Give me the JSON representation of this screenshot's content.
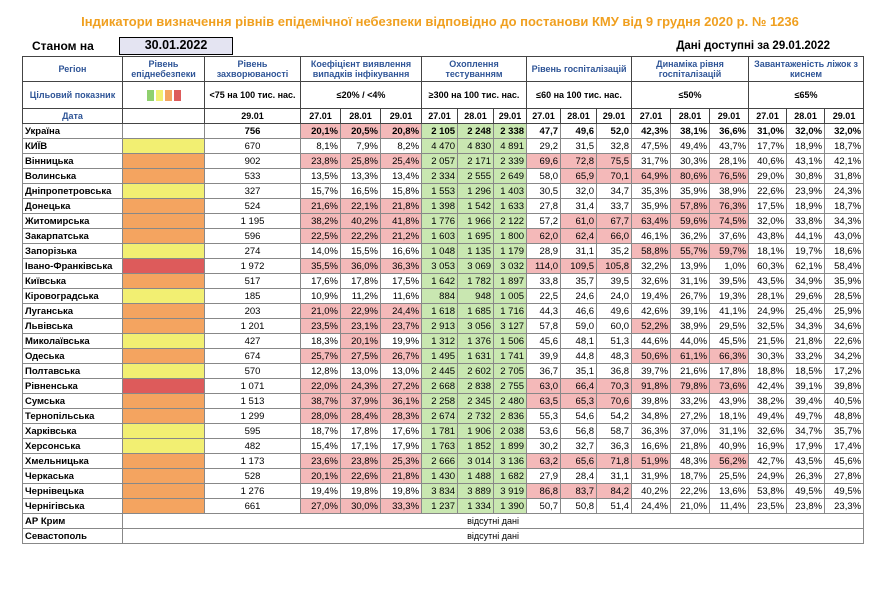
{
  "title": "Індикатори визначення рівнів епідемічної небезпеки відповідно до постанови КМУ від 9 грудня 2020 р. № 1236",
  "status": {
    "label": "Станом на",
    "date": "30.01.2022",
    "available": "Дані доступні за 29.01.2022"
  },
  "headers": {
    "region": "Регіон",
    "target_indicator": "Цільовий показник",
    "date_label": "Дата",
    "level": "Рівень епіднебезпеки",
    "incidence": "Рівень захворюваності",
    "incidence_target": "<75 на 100 тис. нас.",
    "incidence_date": "29.01",
    "coef": "Коефіцієнт виявлення випадків інфікування",
    "coef_target": "≤20% / <4%",
    "coverage": "Охоплення тестуванням",
    "coverage_target": "≥300 на 100 тис. нас.",
    "hosp": "Рівень госпіталізацій",
    "hosp_target": "≤60 на 100 тис. нас.",
    "dyn": "Динаміка рівня госпіталізацій",
    "dyn_target": "≤50%",
    "beds": "Завантаженість ліжок з киснем",
    "beds_target": "≤65%",
    "dates3": [
      "27.01",
      "28.01",
      "29.01"
    ],
    "legend_colors": [
      "#8fd06e",
      "#f2ef72",
      "#f4a460",
      "#dd5b5b"
    ]
  },
  "rows": [
    {
      "name": "Україна",
      "level": "",
      "inc": "756",
      "coef": [
        "20,1%",
        "20,5%",
        "20,8%"
      ],
      "cov": [
        "2 105",
        "2 248",
        "2 338"
      ],
      "hosp": [
        "47,7",
        "49,6",
        "52,0"
      ],
      "dyn": [
        "42,3%",
        "38,1%",
        "36,6%"
      ],
      "beds": [
        "31,0%",
        "32,0%",
        "32,0%"
      ]
    },
    {
      "name": "КИЇВ",
      "level": "yellow",
      "inc": "670",
      "coef": [
        "8,1%",
        "7,9%",
        "8,2%"
      ],
      "cov": [
        "4 470",
        "4 830",
        "4 891"
      ],
      "hosp": [
        "29,2",
        "31,5",
        "32,8"
      ],
      "dyn": [
        "47,5%",
        "49,4%",
        "43,7%"
      ],
      "beds": [
        "17,7%",
        "18,9%",
        "18,7%"
      ]
    },
    {
      "name": "Вінницька",
      "level": "orange",
      "inc": "902",
      "coef": [
        "23,8%",
        "25,8%",
        "25,4%"
      ],
      "cov": [
        "2 057",
        "2 171",
        "2 339"
      ],
      "hosp": [
        "69,6",
        "72,8",
        "75,5"
      ],
      "dyn": [
        "31,7%",
        "30,3%",
        "28,1%"
      ],
      "beds": [
        "40,6%",
        "43,1%",
        "42,1%"
      ]
    },
    {
      "name": "Волинська",
      "level": "orange",
      "inc": "533",
      "coef": [
        "13,5%",
        "13,3%",
        "13,4%"
      ],
      "cov": [
        "2 334",
        "2 555",
        "2 649"
      ],
      "hosp": [
        "58,0",
        "65,9",
        "70,1"
      ],
      "dyn": [
        "64,9%",
        "80,6%",
        "76,5%"
      ],
      "beds": [
        "29,0%",
        "30,8%",
        "31,8%"
      ]
    },
    {
      "name": "Дніпропетровська",
      "level": "yellow",
      "inc": "327",
      "coef": [
        "15,7%",
        "16,5%",
        "15,8%"
      ],
      "cov": [
        "1 553",
        "1 296",
        "1 403"
      ],
      "hosp": [
        "30,5",
        "32,0",
        "34,7"
      ],
      "dyn": [
        "35,3%",
        "35,9%",
        "38,9%"
      ],
      "beds": [
        "22,6%",
        "23,9%",
        "24,3%"
      ]
    },
    {
      "name": "Донецька",
      "level": "orange",
      "inc": "524",
      "coef": [
        "21,6%",
        "22,1%",
        "21,8%"
      ],
      "cov": [
        "1 398",
        "1 542",
        "1 633"
      ],
      "hosp": [
        "27,8",
        "31,4",
        "33,7"
      ],
      "dyn": [
        "35,9%",
        "57,8%",
        "76,3%"
      ],
      "beds": [
        "17,5%",
        "18,9%",
        "18,7%"
      ]
    },
    {
      "name": "Житомирська",
      "level": "orange",
      "inc": "1 195",
      "coef": [
        "38,2%",
        "40,2%",
        "41,8%"
      ],
      "cov": [
        "1 776",
        "1 966",
        "2 122"
      ],
      "hosp": [
        "57,2",
        "61,0",
        "67,7"
      ],
      "dyn": [
        "63,4%",
        "59,6%",
        "74,5%"
      ],
      "beds": [
        "32,0%",
        "33,8%",
        "34,3%"
      ]
    },
    {
      "name": "Закарпатська",
      "level": "orange",
      "inc": "596",
      "coef": [
        "22,5%",
        "22,2%",
        "21,2%"
      ],
      "cov": [
        "1 603",
        "1 695",
        "1 800"
      ],
      "hosp": [
        "62,0",
        "62,4",
        "66,0"
      ],
      "dyn": [
        "46,1%",
        "36,2%",
        "37,6%"
      ],
      "beds": [
        "43,8%",
        "44,1%",
        "43,0%"
      ]
    },
    {
      "name": "Запорізька",
      "level": "yellow",
      "inc": "274",
      "coef": [
        "14,0%",
        "15,5%",
        "16,6%"
      ],
      "cov": [
        "1 048",
        "1 135",
        "1 179"
      ],
      "hosp": [
        "28,9",
        "31,1",
        "35,2"
      ],
      "dyn": [
        "58,8%",
        "55,7%",
        "59,7%"
      ],
      "beds": [
        "18,1%",
        "19,7%",
        "18,6%"
      ]
    },
    {
      "name": "Івано-Франківська",
      "level": "red",
      "inc": "1 972",
      "coef": [
        "35,5%",
        "36,0%",
        "36,3%"
      ],
      "cov": [
        "3 053",
        "3 069",
        "3 032"
      ],
      "hosp": [
        "114,0",
        "109,5",
        "105,8"
      ],
      "dyn": [
        "32,2%",
        "13,9%",
        "1,0%"
      ],
      "beds": [
        "60,3%",
        "62,1%",
        "58,4%"
      ]
    },
    {
      "name": "Київська",
      "level": "orange",
      "inc": "517",
      "coef": [
        "17,6%",
        "17,8%",
        "17,5%"
      ],
      "cov": [
        "1 642",
        "1 782",
        "1 897"
      ],
      "hosp": [
        "33,8",
        "35,7",
        "39,5"
      ],
      "dyn": [
        "32,6%",
        "31,1%",
        "39,5%"
      ],
      "beds": [
        "43,5%",
        "34,9%",
        "35,9%"
      ]
    },
    {
      "name": "Кіровоградська",
      "level": "yellow",
      "inc": "185",
      "coef": [
        "10,9%",
        "11,2%",
        "11,6%"
      ],
      "cov": [
        "884",
        "948",
        "1 005"
      ],
      "hosp": [
        "22,5",
        "24,6",
        "24,0"
      ],
      "dyn": [
        "19,4%",
        "26,7%",
        "19,3%"
      ],
      "beds": [
        "28,1%",
        "29,6%",
        "28,5%"
      ]
    },
    {
      "name": "Луганська",
      "level": "orange",
      "inc": "203",
      "coef": [
        "21,0%",
        "22,9%",
        "24,4%"
      ],
      "cov": [
        "1 618",
        "1 685",
        "1 716"
      ],
      "hosp": [
        "44,3",
        "46,6",
        "49,6"
      ],
      "dyn": [
        "42,6%",
        "39,1%",
        "41,1%"
      ],
      "beds": [
        "24,9%",
        "25,4%",
        "25,9%"
      ]
    },
    {
      "name": "Львівська",
      "level": "orange",
      "inc": "1 201",
      "coef": [
        "23,5%",
        "23,1%",
        "23,7%"
      ],
      "cov": [
        "2 913",
        "3 056",
        "3 127"
      ],
      "hosp": [
        "57,8",
        "59,0",
        "60,0"
      ],
      "dyn": [
        "52,2%",
        "38,9%",
        "29,5%"
      ],
      "beds": [
        "32,5%",
        "34,3%",
        "34,6%"
      ]
    },
    {
      "name": "Миколаївська",
      "level": "yellow",
      "inc": "427",
      "coef": [
        "18,3%",
        "20,1%",
        "19,9%"
      ],
      "cov": [
        "1 312",
        "1 376",
        "1 506"
      ],
      "hosp": [
        "45,6",
        "48,1",
        "51,3"
      ],
      "dyn": [
        "44,6%",
        "44,0%",
        "45,5%"
      ],
      "beds": [
        "21,5%",
        "21,8%",
        "22,6%"
      ]
    },
    {
      "name": "Одеська",
      "level": "orange",
      "inc": "674",
      "coef": [
        "25,7%",
        "27,5%",
        "26,7%"
      ],
      "cov": [
        "1 495",
        "1 631",
        "1 741"
      ],
      "hosp": [
        "39,9",
        "44,8",
        "48,3"
      ],
      "dyn": [
        "50,6%",
        "61,1%",
        "66,3%"
      ],
      "beds": [
        "30,3%",
        "33,2%",
        "34,2%"
      ]
    },
    {
      "name": "Полтавська",
      "level": "yellow",
      "inc": "570",
      "coef": [
        "12,8%",
        "13,0%",
        "13,0%"
      ],
      "cov": [
        "2 445",
        "2 602",
        "2 705"
      ],
      "hosp": [
        "36,7",
        "35,1",
        "36,8"
      ],
      "dyn": [
        "39,7%",
        "21,6%",
        "17,8%"
      ],
      "beds": [
        "18,8%",
        "18,5%",
        "17,2%"
      ]
    },
    {
      "name": "Рівненська",
      "level": "red",
      "inc": "1 071",
      "coef": [
        "22,0%",
        "24,3%",
        "27,2%"
      ],
      "cov": [
        "2 668",
        "2 838",
        "2 755"
      ],
      "hosp": [
        "63,0",
        "66,4",
        "70,3"
      ],
      "dyn": [
        "91,8%",
        "79,8%",
        "73,6%"
      ],
      "beds": [
        "42,4%",
        "39,1%",
        "39,8%"
      ]
    },
    {
      "name": "Сумська",
      "level": "orange",
      "inc": "1 513",
      "coef": [
        "38,7%",
        "37,9%",
        "36,1%"
      ],
      "cov": [
        "2 258",
        "2 345",
        "2 480"
      ],
      "hosp": [
        "63,5",
        "65,3",
        "70,6"
      ],
      "dyn": [
        "39,8%",
        "33,2%",
        "43,9%"
      ],
      "beds": [
        "38,2%",
        "39,4%",
        "40,5%"
      ]
    },
    {
      "name": "Тернопільська",
      "level": "orange",
      "inc": "1 299",
      "coef": [
        "28,0%",
        "28,4%",
        "28,3%"
      ],
      "cov": [
        "2 674",
        "2 732",
        "2 836"
      ],
      "hosp": [
        "55,3",
        "54,6",
        "54,2"
      ],
      "dyn": [
        "34,8%",
        "27,2%",
        "18,1%"
      ],
      "beds": [
        "49,4%",
        "49,7%",
        "48,8%"
      ]
    },
    {
      "name": "Харківська",
      "level": "yellow",
      "inc": "595",
      "coef": [
        "18,7%",
        "17,8%",
        "17,6%"
      ],
      "cov": [
        "1 781",
        "1 906",
        "2 038"
      ],
      "hosp": [
        "53,6",
        "56,8",
        "58,7"
      ],
      "dyn": [
        "36,3%",
        "37,0%",
        "31,1%"
      ],
      "beds": [
        "32,6%",
        "34,7%",
        "35,7%"
      ]
    },
    {
      "name": "Херсонська",
      "level": "yellow",
      "inc": "482",
      "coef": [
        "15,4%",
        "17,1%",
        "17,9%"
      ],
      "cov": [
        "1 763",
        "1 852",
        "1 899"
      ],
      "hosp": [
        "30,2",
        "32,7",
        "36,3"
      ],
      "dyn": [
        "16,6%",
        "21,8%",
        "40,9%"
      ],
      "beds": [
        "16,9%",
        "17,9%",
        "17,4%"
      ]
    },
    {
      "name": "Хмельницька",
      "level": "orange",
      "inc": "1 173",
      "coef": [
        "23,6%",
        "23,8%",
        "25,3%"
      ],
      "cov": [
        "2 666",
        "3 014",
        "3 136"
      ],
      "hosp": [
        "63,2",
        "65,6",
        "71,8"
      ],
      "dyn": [
        "51,9%",
        "48,3%",
        "56,2%"
      ],
      "beds": [
        "42,7%",
        "43,5%",
        "45,6%"
      ]
    },
    {
      "name": "Черкаська",
      "level": "orange",
      "inc": "528",
      "coef": [
        "20,1%",
        "22,6%",
        "21,8%"
      ],
      "cov": [
        "1 430",
        "1 488",
        "1 682"
      ],
      "hosp": [
        "27,9",
        "28,4",
        "31,1"
      ],
      "dyn": [
        "31,9%",
        "18,7%",
        "25,5%"
      ],
      "beds": [
        "24,9%",
        "26,3%",
        "27,8%"
      ]
    },
    {
      "name": "Чернівецька",
      "level": "orange",
      "inc": "1 276",
      "coef": [
        "19,4%",
        "19,8%",
        "19,8%"
      ],
      "cov": [
        "3 834",
        "3 889",
        "3 919"
      ],
      "hosp": [
        "86,8",
        "83,7",
        "84,2"
      ],
      "dyn": [
        "40,2%",
        "22,2%",
        "13,6%"
      ],
      "beds": [
        "53,8%",
        "49,5%",
        "49,5%"
      ]
    },
    {
      "name": "Чернігівська",
      "level": "orange",
      "inc": "661",
      "coef": [
        "27,0%",
        "30,0%",
        "33,3%"
      ],
      "cov": [
        "1 237",
        "1 334",
        "1 390"
      ],
      "hosp": [
        "50,7",
        "50,8",
        "51,4"
      ],
      "dyn": [
        "24,4%",
        "21,0%",
        "11,4%"
      ],
      "beds": [
        "23,5%",
        "23,8%",
        "23,3%"
      ]
    }
  ],
  "absent_rows": [
    {
      "name": "АР Крим",
      "text": "відсутні дані"
    },
    {
      "name": "Севастополь",
      "text": "відсутні дані"
    }
  ]
}
